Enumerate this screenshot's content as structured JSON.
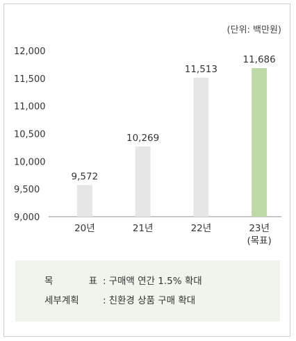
{
  "unit_label": "(단위: 백만원)",
  "chart_data": {
    "type": "bar",
    "categories": [
      "20년",
      "21년",
      "22년",
      "23년"
    ],
    "category_sublabels": [
      "",
      "",
      "",
      "(목표)"
    ],
    "values": [
      9572,
      10269,
      11513,
      11686
    ],
    "value_labels": [
      "9,572",
      "10,269",
      "11,513",
      "11,686"
    ],
    "ylim": [
      9000,
      12000
    ],
    "yticks": [
      9000,
      9500,
      10000,
      10500,
      11000,
      11500,
      12000
    ],
    "ytick_labels": [
      "9,000",
      "9,500",
      "10,000",
      "10,500",
      "11,000",
      "11,500",
      "12,000"
    ],
    "grid": false,
    "colors": {
      "actual": "#e6e6e6",
      "target": "#bcd9a6",
      "axis": "#888888"
    }
  },
  "summary": {
    "goal_label_chars": [
      "목",
      "표"
    ],
    "goal_text": "구매액 연간 1.5% 확대",
    "plan_label": "세부계획",
    "plan_text": "친환경 상품 구매 확대",
    "colon": ":"
  }
}
